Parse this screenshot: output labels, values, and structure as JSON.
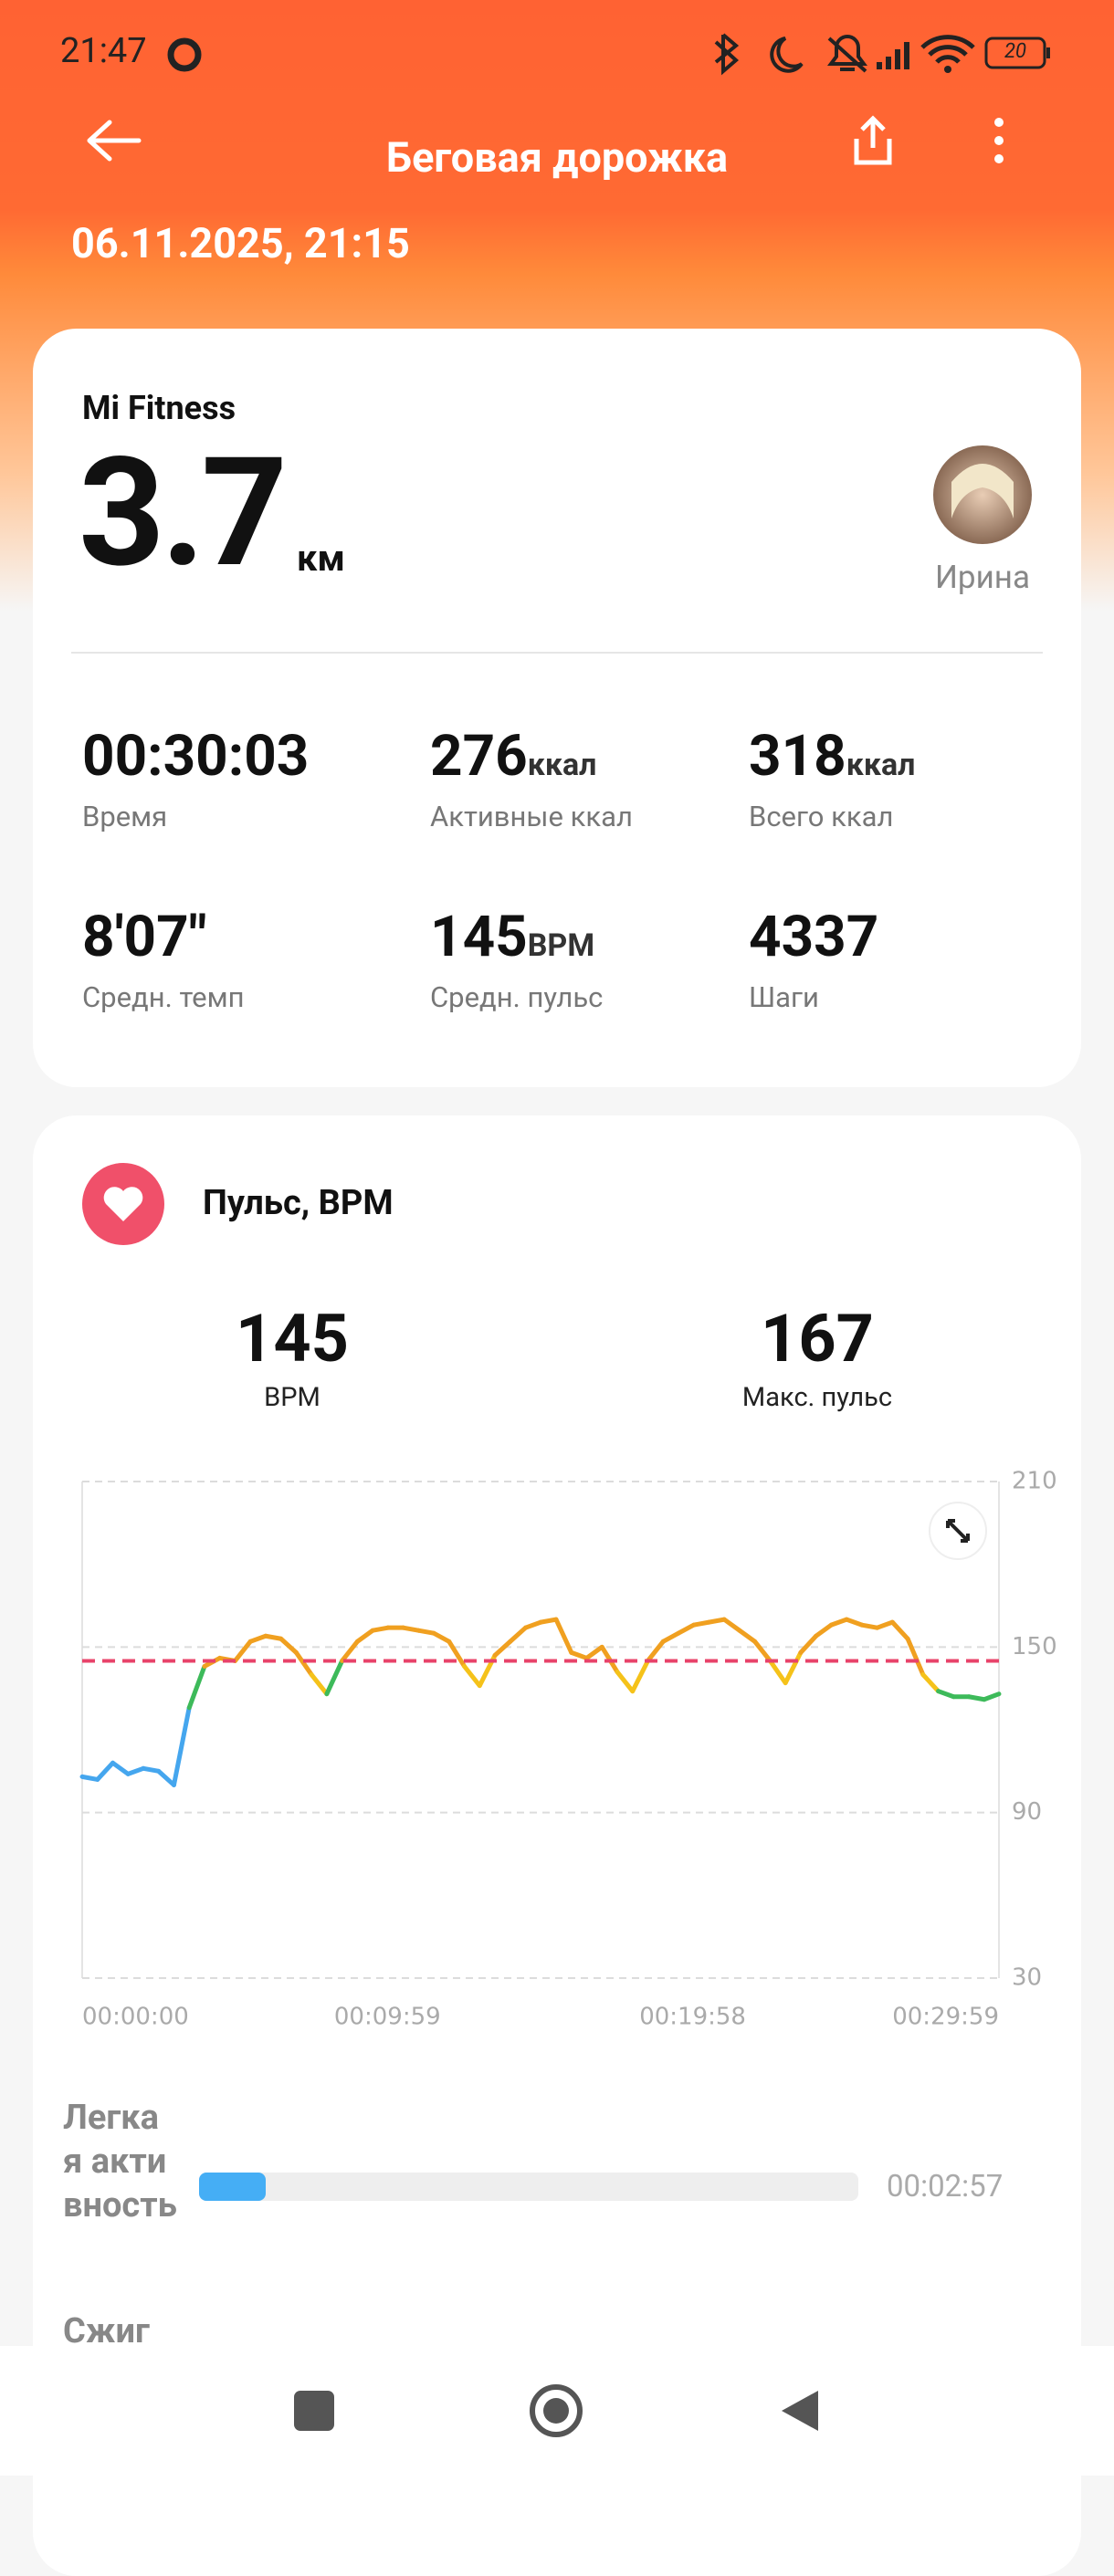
{
  "status_bar": {
    "time": "21:47",
    "battery": "20"
  },
  "header": {
    "title": "Беговая дорожка",
    "date": "06.11.2025, 21:15"
  },
  "summary": {
    "source": "Mi Fitness",
    "distance": "3.7",
    "distance_unit": "км",
    "user": "Ирина",
    "stats": [
      {
        "value": "00:30:03",
        "label": "Время"
      },
      {
        "value": "276",
        "unit": "ккал",
        "label": "Активные ккал"
      },
      {
        "value": "318",
        "unit": "ккал",
        "label": "Всего ккал"
      },
      {
        "value": "8'07\"",
        "label": "Средн. темп"
      },
      {
        "value": "145",
        "unit": "BPM",
        "label": "Средн. пульс"
      },
      {
        "value": "4337",
        "label": "Шаги"
      }
    ]
  },
  "heart": {
    "title": "Пульс, BPM",
    "avg": 145,
    "avg_unit": "BPM",
    "max": 167,
    "max_label": "Макс. пульс"
  },
  "chart_data": {
    "type": "line",
    "x": [
      0,
      30,
      60,
      90,
      120,
      150,
      180,
      210,
      240,
      270,
      300,
      330,
      360,
      390,
      420,
      450,
      480,
      510,
      540,
      570,
      600,
      630,
      660,
      690,
      720,
      750,
      780,
      810,
      840,
      870,
      900,
      930,
      960,
      990,
      1020,
      1050,
      1080,
      1110,
      1140,
      1170,
      1200,
      1230,
      1260,
      1290,
      1320,
      1350,
      1380,
      1410,
      1440,
      1470,
      1500,
      1530,
      1560,
      1590,
      1620,
      1650,
      1680,
      1710,
      1740,
      1770,
      1799
    ],
    "values": [
      103,
      102,
      108,
      104,
      106,
      105,
      100,
      128,
      143,
      146,
      145,
      152,
      154,
      153,
      148,
      140,
      133,
      145,
      152,
      156,
      157,
      157,
      156,
      155,
      152,
      143,
      136,
      147,
      152,
      157,
      159,
      160,
      148,
      146,
      150,
      141,
      134,
      145,
      152,
      155,
      158,
      159,
      160,
      156,
      152,
      145,
      137,
      148,
      154,
      158,
      160,
      158,
      157,
      159,
      153,
      140,
      134,
      132,
      132,
      131,
      133
    ],
    "point_colors": [
      "#45a6ee",
      "#45a6ee",
      "#45a6ee",
      "#45a6ee",
      "#45a6ee",
      "#45a6ee",
      "#45a6ee",
      "#3dba5a",
      "#f0a020",
      "#f0a020",
      "#f0a020",
      "#f0a020",
      "#f0a020",
      "#f0a020",
      "#f0a020",
      "#f5c21a",
      "#3dba5a",
      "#f0a020",
      "#f0a020",
      "#f0a020",
      "#f0a020",
      "#f0a020",
      "#f0a020",
      "#f0a020",
      "#f0a020",
      "#f5c21a",
      "#f5c21a",
      "#f0a020",
      "#f0a020",
      "#f0a020",
      "#f0a020",
      "#f0a020",
      "#f0a020",
      "#f0a020",
      "#f0a020",
      "#f5c21a",
      "#f5c21a",
      "#f0a020",
      "#f0a020",
      "#f0a020",
      "#f0a020",
      "#f0a020",
      "#f0a020",
      "#f0a020",
      "#f0a020",
      "#f5c21a",
      "#f5c21a",
      "#f0a020",
      "#f0a020",
      "#f0a020",
      "#f0a020",
      "#f0a020",
      "#f0a020",
      "#f0a020",
      "#f0a020",
      "#f5c21a",
      "#3dba5a",
      "#3dba5a",
      "#3dba5a",
      "#3dba5a",
      "#3dba5a"
    ],
    "xlim": [
      0,
      1799
    ],
    "xticks": [
      {
        "value": 0,
        "label": "00:00:00"
      },
      {
        "value": 599,
        "label": "00:09:59"
      },
      {
        "value": 1198,
        "label": "00:19:58"
      },
      {
        "value": 1799,
        "label": "00:29:59"
      }
    ],
    "ylim": [
      30,
      210
    ],
    "yticks": [
      30,
      90,
      150,
      210
    ],
    "grid": true,
    "reference_color": "#e8436a"
  },
  "zones": [
    {
      "label": "Легкая активность",
      "time": "00:02:57"
    },
    {
      "label": "Сжиг"
    }
  ]
}
